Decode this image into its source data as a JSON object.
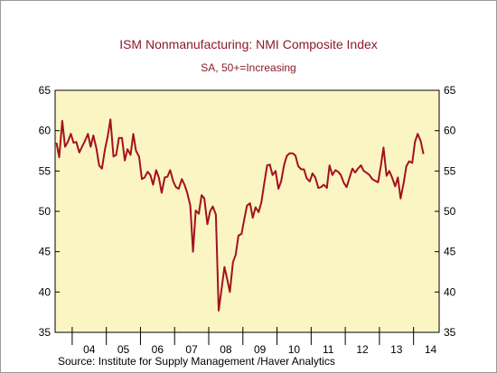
{
  "chart_data": {
    "type": "line",
    "title": "ISM Nonmanufacturing: NMI Composite Index",
    "subtitle": "SA, 50+=Increasing",
    "source": "Source:  Institute for Supply Management /Haver Analytics",
    "xlabel": "",
    "ylabel": "",
    "ylim": [
      35,
      65
    ],
    "yticks": [
      35,
      40,
      45,
      50,
      55,
      60,
      65
    ],
    "x_range": [
      2003.5,
      2014.75
    ],
    "x_year_labels": [
      "04",
      "05",
      "06",
      "07",
      "08",
      "09",
      "10",
      "11",
      "12",
      "13",
      "14"
    ],
    "grid": false,
    "legend": "none",
    "colors": {
      "plot_background": "#fbf5c3",
      "line": "#a3111f",
      "title": "#8b1a2b"
    },
    "series": [
      {
        "values": [
          [
            2003.54,
            58.5
          ],
          [
            2003.62,
            56.7
          ],
          [
            2003.71,
            61.2
          ],
          [
            2003.79,
            58.0
          ],
          [
            2003.87,
            58.6
          ],
          [
            2003.96,
            59.6
          ],
          [
            2004.04,
            58.5
          ],
          [
            2004.12,
            58.6
          ],
          [
            2004.21,
            57.3
          ],
          [
            2004.29,
            58.0
          ],
          [
            2004.37,
            58.7
          ],
          [
            2004.46,
            59.6
          ],
          [
            2004.54,
            58.0
          ],
          [
            2004.62,
            59.4
          ],
          [
            2004.71,
            57.8
          ],
          [
            2004.79,
            55.7
          ],
          [
            2004.87,
            55.3
          ],
          [
            2004.96,
            57.7
          ],
          [
            2005.04,
            59.3
          ],
          [
            2005.12,
            61.4
          ],
          [
            2005.21,
            56.8
          ],
          [
            2005.29,
            57.0
          ],
          [
            2005.37,
            59.1
          ],
          [
            2005.46,
            59.1
          ],
          [
            2005.54,
            56.3
          ],
          [
            2005.62,
            57.7
          ],
          [
            2005.71,
            57.0
          ],
          [
            2005.79,
            59.6
          ],
          [
            2005.87,
            57.5
          ],
          [
            2005.96,
            56.8
          ],
          [
            2006.04,
            54.0
          ],
          [
            2006.12,
            54.2
          ],
          [
            2006.21,
            54.9
          ],
          [
            2006.29,
            54.5
          ],
          [
            2006.37,
            53.3
          ],
          [
            2006.46,
            55.1
          ],
          [
            2006.54,
            54.2
          ],
          [
            2006.62,
            52.3
          ],
          [
            2006.71,
            54.2
          ],
          [
            2006.79,
            54.3
          ],
          [
            2006.87,
            55.1
          ],
          [
            2006.96,
            53.7
          ],
          [
            2007.04,
            53.0
          ],
          [
            2007.12,
            52.8
          ],
          [
            2007.21,
            54.0
          ],
          [
            2007.29,
            53.3
          ],
          [
            2007.37,
            52.3
          ],
          [
            2007.46,
            50.7
          ],
          [
            2007.54,
            45.0
          ],
          [
            2007.62,
            50.1
          ],
          [
            2007.71,
            49.7
          ],
          [
            2007.79,
            52.0
          ],
          [
            2007.87,
            51.6
          ],
          [
            2007.96,
            48.4
          ],
          [
            2008.04,
            50.0
          ],
          [
            2008.12,
            50.6
          ],
          [
            2008.21,
            49.6
          ],
          [
            2008.29,
            37.7
          ],
          [
            2008.37,
            40.2
          ],
          [
            2008.46,
            43.1
          ],
          [
            2008.54,
            41.6
          ],
          [
            2008.62,
            40.0
          ],
          [
            2008.71,
            43.7
          ],
          [
            2008.79,
            44.6
          ],
          [
            2008.87,
            47.0
          ],
          [
            2008.96,
            47.2
          ],
          [
            2009.04,
            49.0
          ],
          [
            2009.12,
            50.7
          ],
          [
            2009.21,
            51.0
          ],
          [
            2009.29,
            49.2
          ],
          [
            2009.37,
            50.5
          ],
          [
            2009.46,
            49.9
          ],
          [
            2009.54,
            51.1
          ],
          [
            2009.62,
            53.3
          ],
          [
            2009.71,
            55.7
          ],
          [
            2009.79,
            55.8
          ],
          [
            2009.87,
            54.5
          ],
          [
            2009.96,
            55.0
          ],
          [
            2010.04,
            52.8
          ],
          [
            2010.12,
            53.7
          ],
          [
            2010.21,
            55.8
          ],
          [
            2010.29,
            56.9
          ],
          [
            2010.37,
            57.2
          ],
          [
            2010.46,
            57.2
          ],
          [
            2010.54,
            56.9
          ],
          [
            2010.62,
            55.6
          ],
          [
            2010.71,
            55.2
          ],
          [
            2010.79,
            55.2
          ],
          [
            2010.87,
            54.1
          ],
          [
            2010.96,
            53.7
          ],
          [
            2011.04,
            54.7
          ],
          [
            2011.12,
            54.2
          ],
          [
            2011.21,
            52.9
          ],
          [
            2011.29,
            53.0
          ],
          [
            2011.37,
            53.3
          ],
          [
            2011.46,
            52.9
          ],
          [
            2011.54,
            55.7
          ],
          [
            2011.62,
            54.5
          ],
          [
            2011.71,
            55.1
          ],
          [
            2011.79,
            54.9
          ],
          [
            2011.87,
            54.5
          ],
          [
            2011.96,
            53.5
          ],
          [
            2012.04,
            53.0
          ],
          [
            2012.12,
            54.1
          ],
          [
            2012.21,
            55.3
          ],
          [
            2012.29,
            54.8
          ],
          [
            2012.37,
            55.3
          ],
          [
            2012.46,
            55.7
          ],
          [
            2012.54,
            55.0
          ],
          [
            2012.62,
            54.8
          ],
          [
            2012.71,
            54.5
          ],
          [
            2012.79,
            54.0
          ],
          [
            2012.87,
            53.8
          ],
          [
            2012.96,
            53.6
          ],
          [
            2013.04,
            55.6
          ],
          [
            2013.12,
            57.9
          ],
          [
            2013.21,
            54.4
          ],
          [
            2013.29,
            55.0
          ],
          [
            2013.37,
            54.2
          ],
          [
            2013.46,
            53.1
          ],
          [
            2013.54,
            54.2
          ],
          [
            2013.62,
            51.6
          ],
          [
            2013.71,
            53.5
          ],
          [
            2013.79,
            55.6
          ],
          [
            2013.87,
            56.2
          ],
          [
            2013.96,
            56.0
          ],
          [
            2014.04,
            58.6
          ],
          [
            2014.12,
            59.6
          ],
          [
            2014.21,
            58.7
          ],
          [
            2014.29,
            57.1
          ]
        ]
      }
    ]
  }
}
